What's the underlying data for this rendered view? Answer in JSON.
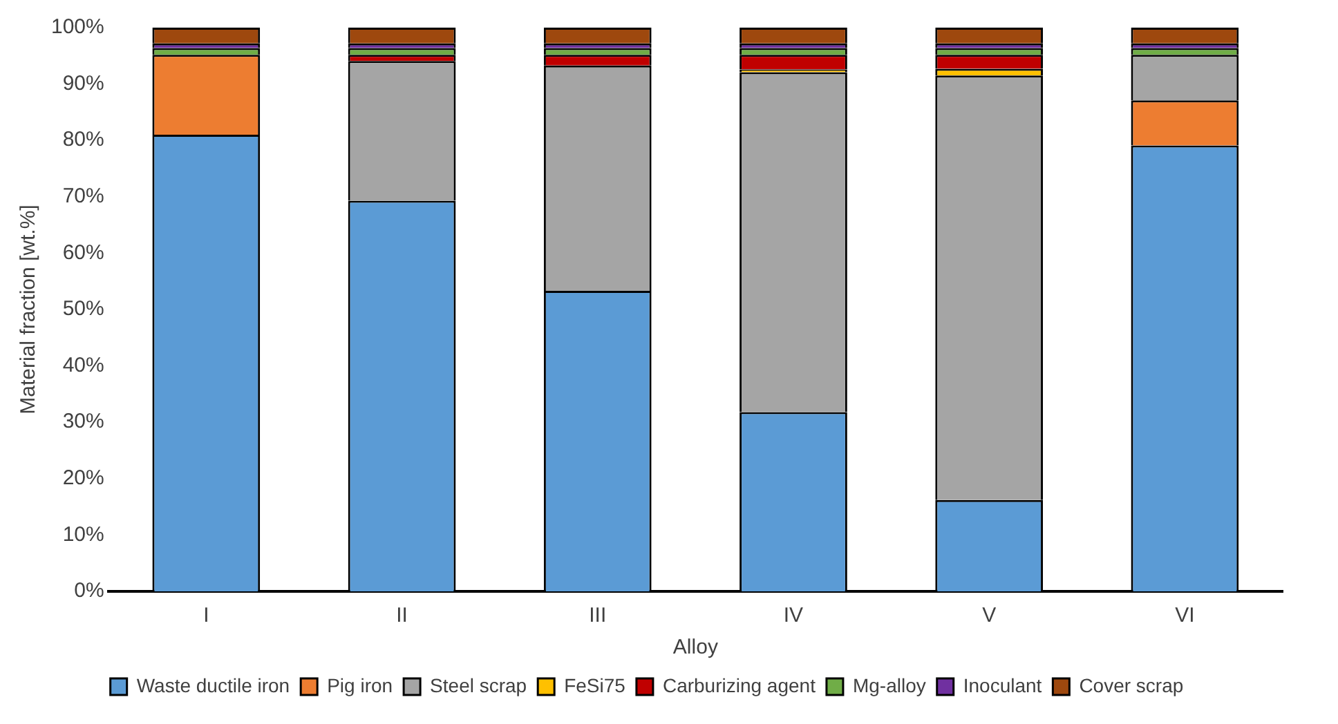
{
  "chart_data": {
    "type": "bar",
    "stacked": true,
    "xlabel": "Alloy",
    "ylabel": "Material fraction [wt.%]",
    "categories": [
      "I",
      "II",
      "III",
      "IV",
      "V",
      "VI"
    ],
    "series": [
      {
        "name": "Waste ductile iron",
        "color": "#5b9bd5",
        "values": [
          81,
          69.3,
          53.3,
          31.8,
          16.2,
          79.1
        ]
      },
      {
        "name": "Pig iron",
        "color": "#ed7d31",
        "values": [
          14.2,
          0,
          0,
          0,
          0,
          8
        ]
      },
      {
        "name": "Steel scrap",
        "color": "#a5a5a5",
        "values": [
          0,
          24.8,
          40,
          60.3,
          75.3,
          8.1
        ]
      },
      {
        "name": "FeSi75",
        "color": "#ffc000",
        "values": [
          0,
          0,
          0,
          0.5,
          1.2,
          0
        ]
      },
      {
        "name": "Carburizing agent",
        "color": "#c00000",
        "values": [
          0,
          1.1,
          1.9,
          2.6,
          2.5,
          0
        ]
      },
      {
        "name": "Mg-alloy",
        "color": "#70ad47",
        "values": [
          1.2,
          1.2,
          1.2,
          1.2,
          1.2,
          1.2
        ]
      },
      {
        "name": "Inoculant",
        "color": "#7030a0",
        "values": [
          0.8,
          0.8,
          0.8,
          0.8,
          0.8,
          0.8
        ]
      },
      {
        "name": "Cover scrap",
        "color": "#9e480e",
        "values": [
          2.8,
          2.8,
          2.8,
          2.8,
          2.8,
          2.8
        ]
      }
    ],
    "ylim": [
      0,
      100
    ],
    "yticks": [
      {
        "value": 0,
        "label": "0%"
      },
      {
        "value": 10,
        "label": "10%"
      },
      {
        "value": 20,
        "label": "20%"
      },
      {
        "value": 30,
        "label": "30%"
      },
      {
        "value": 40,
        "label": "40%"
      },
      {
        "value": 50,
        "label": "50%"
      },
      {
        "value": 60,
        "label": "60%"
      },
      {
        "value": 70,
        "label": "70%"
      },
      {
        "value": 80,
        "label": "80%"
      },
      {
        "value": 90,
        "label": "90%"
      },
      {
        "value": 100,
        "label": "100%"
      }
    ],
    "grid": false,
    "legend": "bottom"
  }
}
